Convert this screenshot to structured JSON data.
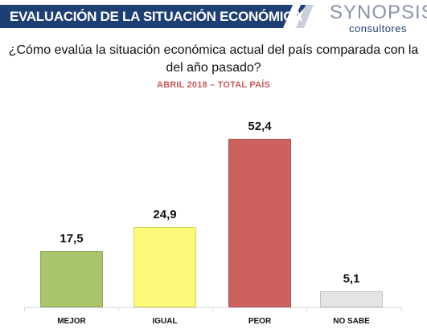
{
  "header": {
    "title": "EVALUACIÓN DE LA SITUACIÓN ECONÓMICA",
    "logo_main": "SYNOPSIS",
    "logo_sub": "consultores",
    "band_color": "#1e3f73"
  },
  "chart_data": {
    "type": "bar",
    "title": "¿Cómo evalúa la situación económica actual del país comparada con la del año pasado?",
    "subtitle": "ABRIL 2018 – TOTAL PAÍS",
    "categories": [
      "MEJOR",
      "IGUAL",
      "PEOR",
      "NO SABE"
    ],
    "values": [
      17.5,
      24.9,
      52.4,
      5.1
    ],
    "value_labels": [
      "17,5",
      "24,9",
      "52,4",
      "5,1"
    ],
    "colors": [
      "#a9c46b",
      "#fbf978",
      "#cc615f",
      "#e4e4e4"
    ],
    "xlabel": "",
    "ylabel": "",
    "ylim": [
      0,
      60
    ],
    "grid": false,
    "legend": "none"
  }
}
